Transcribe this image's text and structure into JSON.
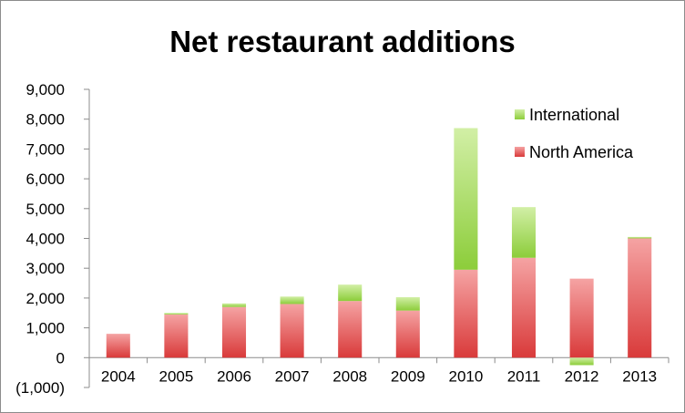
{
  "chart_data": {
    "type": "bar",
    "stacked": true,
    "title": "Net restaurant additions",
    "xlabel": "",
    "ylabel": "",
    "categories": [
      "2004",
      "2005",
      "2006",
      "2007",
      "2008",
      "2009",
      "2010",
      "2011",
      "2012",
      "2013"
    ],
    "series": [
      {
        "name": "North America",
        "color": "#e8595a",
        "values": [
          800,
          1450,
          1700,
          1800,
          1900,
          1580,
          2950,
          3350,
          2650,
          4000
        ]
      },
      {
        "name": "International",
        "color": "#a8dc5c",
        "values": [
          0,
          50,
          120,
          250,
          550,
          450,
          4750,
          1700,
          -250,
          50
        ]
      }
    ],
    "ylim": [
      -1000,
      9000
    ],
    "yticks": [
      -1000,
      0,
      1000,
      2000,
      3000,
      4000,
      5000,
      6000,
      7000,
      8000,
      9000
    ],
    "ytick_labels": [
      "(1,000)",
      "0",
      "1,000",
      "2,000",
      "3,000",
      "4,000",
      "5,000",
      "6,000",
      "7,000",
      "8,000",
      "9,000"
    ],
    "grid": false,
    "legend": {
      "position": "top-right",
      "entries": [
        "International",
        "North America"
      ]
    }
  }
}
